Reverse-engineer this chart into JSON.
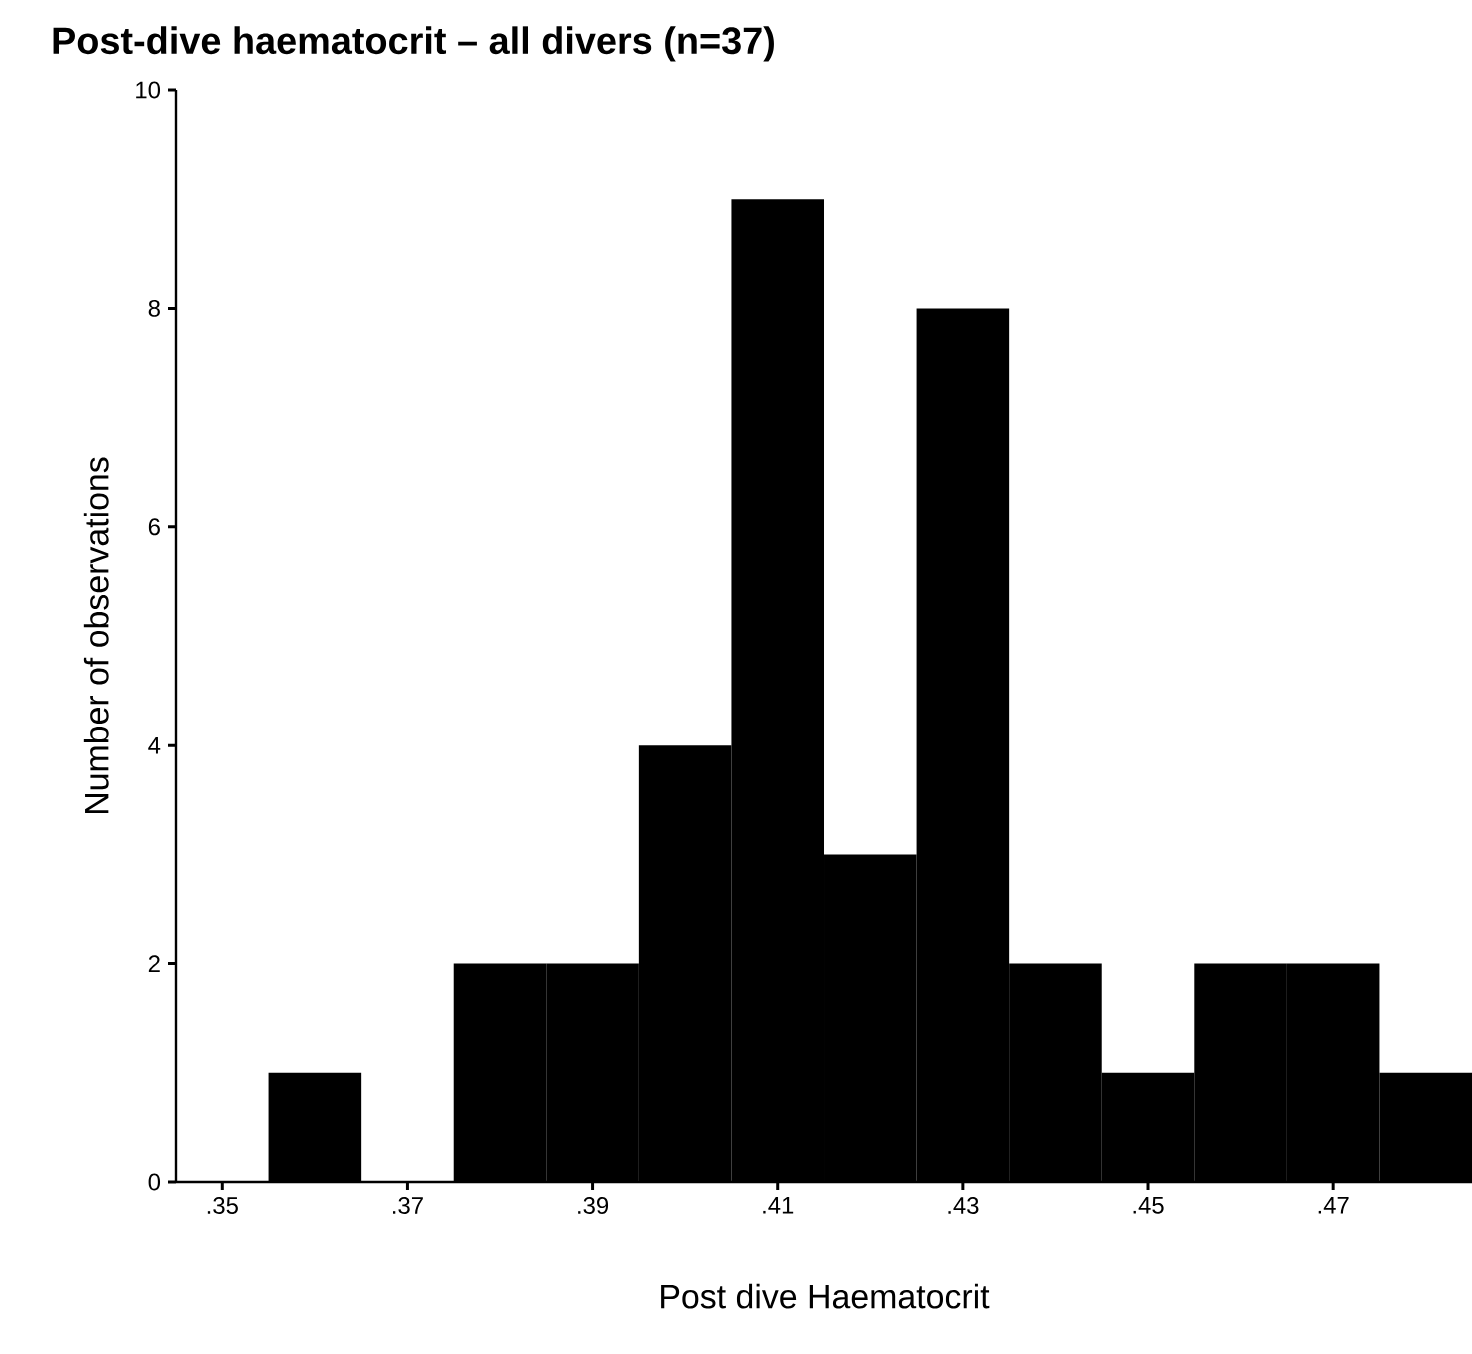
{
  "chart_data": {
    "type": "histogram",
    "title": "Post-dive haematocrit – all divers (n=37)",
    "xlabel": "Post dive Haematocrit",
    "ylabel": "Number of observations",
    "bins": [
      0.355,
      0.365,
      0.375,
      0.385,
      0.395,
      0.405,
      0.415,
      0.425,
      0.435,
      0.445,
      0.455,
      0.465,
      0.475,
      0.485
    ],
    "values": [
      1,
      0,
      2,
      2,
      4,
      9,
      3,
      8,
      2,
      1,
      2,
      2,
      1
    ],
    "color": "#000000",
    "xlim": [
      0.345,
      0.485
    ],
    "ylim": [
      0,
      10
    ],
    "xticks": [
      {
        "value": 0.35,
        "label": ".35"
      },
      {
        "value": 0.37,
        "label": ".37"
      },
      {
        "value": 0.39,
        "label": ".39"
      },
      {
        "value": 0.41,
        "label": ".41"
      },
      {
        "value": 0.43,
        "label": ".43"
      },
      {
        "value": 0.45,
        "label": ".45"
      },
      {
        "value": 0.47,
        "label": ".47"
      }
    ],
    "yticks": [
      0,
      2,
      4,
      6,
      8,
      10
    ]
  }
}
